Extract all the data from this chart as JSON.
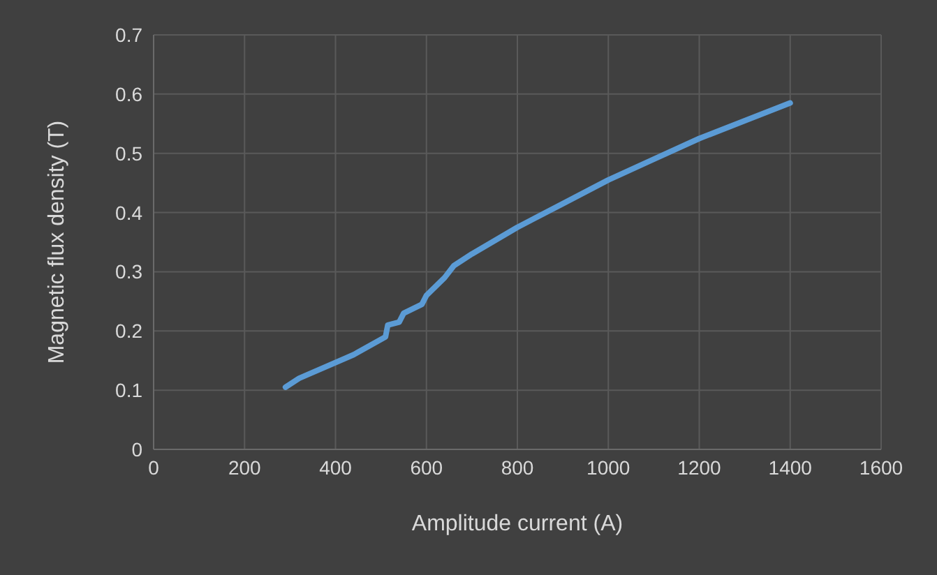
{
  "chart_data": {
    "type": "line",
    "xlabel": "Amplitude current (A)",
    "ylabel": "Magnetic flux density (T)",
    "series": [
      {
        "color": "#5b9bd5",
        "x": [
          290,
          320,
          440,
          510,
          515,
          540,
          550,
          590,
          600,
          620,
          640,
          660,
          700,
          800,
          900,
          1000,
          1100,
          1200,
          1300,
          1400
        ],
        "values": [
          0.105,
          0.12,
          0.16,
          0.19,
          0.21,
          0.215,
          0.23,
          0.245,
          0.26,
          0.275,
          0.29,
          0.31,
          0.33,
          0.375,
          0.415,
          0.455,
          0.49,
          0.525,
          0.555,
          0.585
        ]
      }
    ],
    "xlim": [
      0,
      1600
    ],
    "xticks": [
      0,
      200,
      400,
      600,
      800,
      1000,
      1200,
      1400,
      1600
    ],
    "ylim": [
      0,
      0.7
    ],
    "yticks": [
      0,
      0.1,
      0.2,
      0.3,
      0.4,
      0.5,
      0.6,
      0.7
    ],
    "grid": true,
    "marker": "none",
    "line_style": "solid",
    "legend": false
  }
}
